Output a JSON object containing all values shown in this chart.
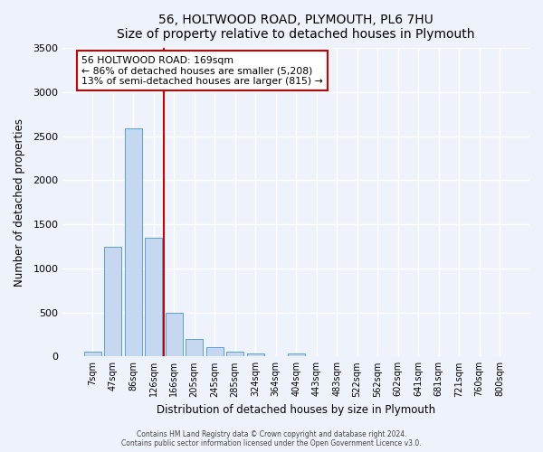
{
  "title": "56, HOLTWOOD ROAD, PLYMOUTH, PL6 7HU",
  "subtitle": "Size of property relative to detached houses in Plymouth",
  "xlabel": "Distribution of detached houses by size in Plymouth",
  "ylabel": "Number of detached properties",
  "bar_labels": [
    "7sqm",
    "47sqm",
    "86sqm",
    "126sqm",
    "166sqm",
    "205sqm",
    "245sqm",
    "285sqm",
    "324sqm",
    "364sqm",
    "404sqm",
    "443sqm",
    "483sqm",
    "522sqm",
    "562sqm",
    "602sqm",
    "641sqm",
    "681sqm",
    "721sqm",
    "760sqm",
    "800sqm"
  ],
  "bar_values": [
    50,
    1240,
    2590,
    1350,
    500,
    200,
    110,
    50,
    30,
    5,
    30,
    5,
    5,
    0,
    0,
    0,
    0,
    0,
    0,
    0,
    0
  ],
  "bar_color": "#c5d8f0",
  "bar_edge_color": "#5a9fd4",
  "vline_color": "#cc0000",
  "annotation_title": "56 HOLTWOOD ROAD: 169sqm",
  "annotation_line1": "← 86% of detached houses are smaller (5,208)",
  "annotation_line2": "13% of semi-detached houses are larger (815) →",
  "annotation_box_color": "#ffffff",
  "annotation_box_edge": "#cc0000",
  "ylim": [
    0,
    3500
  ],
  "yticks": [
    0,
    500,
    1000,
    1500,
    2000,
    2500,
    3000,
    3500
  ],
  "footer1": "Contains HM Land Registry data © Crown copyright and database right 2024.",
  "footer2": "Contains public sector information licensed under the Open Government Licence v3.0.",
  "bg_color": "#eef3fb",
  "grid_color": "#ffffff"
}
